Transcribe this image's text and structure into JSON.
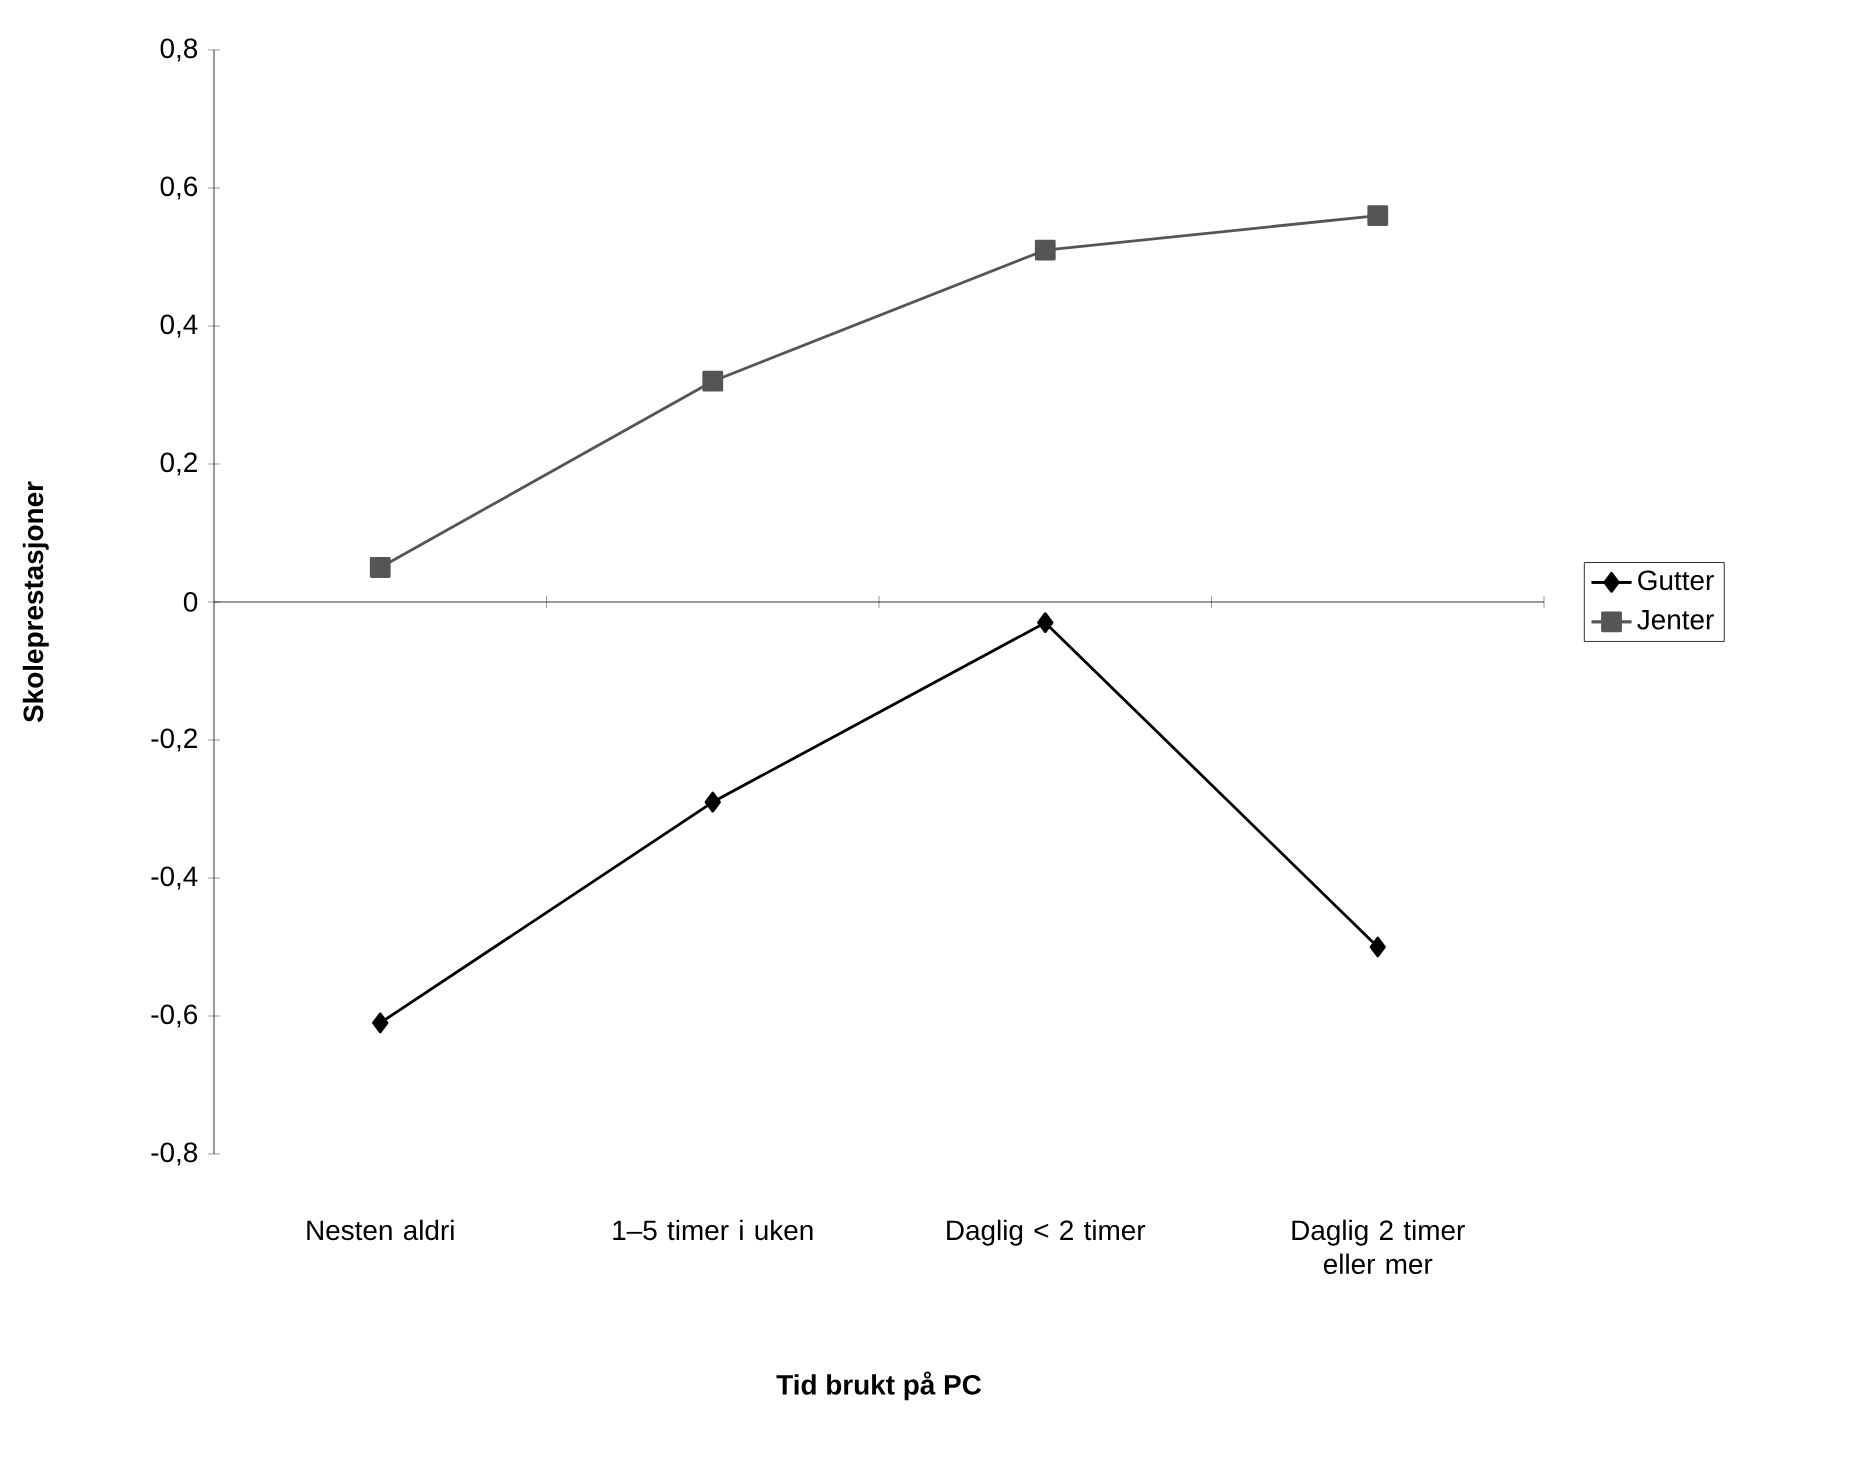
{
  "chart_data": {
    "type": "line",
    "xlabel": "Tid brukt på PC",
    "ylabel": "Skoleprestasjoner",
    "categories": [
      "Nesten aldri",
      "1–5 timer i uken",
      "Daglig < 2 timer",
      "Daglig 2 timer eller mer"
    ],
    "series": [
      {
        "name": "Gutter",
        "color": "#000000",
        "marker": "diamond",
        "values": [
          -0.61,
          -0.29,
          -0.03,
          -0.5
        ]
      },
      {
        "name": "Jenter",
        "color": "#555555",
        "marker": "square",
        "values": [
          0.05,
          0.32,
          0.51,
          0.56
        ]
      }
    ],
    "ylim": [
      -0.8,
      0.8
    ],
    "yticks": [
      {
        "value": -0.8,
        "label": "-0,8"
      },
      {
        "value": -0.6,
        "label": "-0,6"
      },
      {
        "value": -0.4,
        "label": "-0,4"
      },
      {
        "value": -0.2,
        "label": "-0,2"
      },
      0,
      {
        "value": 0.2,
        "label": "0,2"
      },
      {
        "value": 0.4,
        "label": "0,4"
      },
      {
        "value": 0.6,
        "label": "0,6"
      },
      {
        "value": 0.8,
        "label": "0,8"
      }
    ],
    "legend": "right"
  }
}
